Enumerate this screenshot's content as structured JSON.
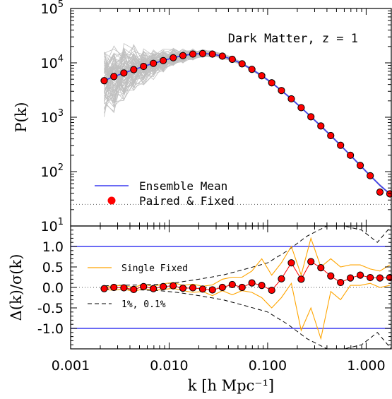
{
  "chart_data": [
    {
      "type": "line",
      "panel": "top",
      "annotation": "Dark Matter, z = 1",
      "ylabel": "P(k)",
      "xscale": "log",
      "yscale": "log",
      "xlim": [
        0.001,
        1.8
      ],
      "ylim": [
        10,
        100000
      ],
      "y_ticks": [
        {
          "value": 10,
          "base": "10",
          "exp": "1"
        },
        {
          "value": 100,
          "base": "10",
          "exp": "2"
        },
        {
          "value": 1000,
          "base": "10",
          "exp": "3"
        },
        {
          "value": 10000,
          "base": "10",
          "exp": "4"
        },
        {
          "value": 100000,
          "base": "10",
          "exp": "5"
        }
      ],
      "legend": {
        "placement": "bottom-left",
        "entries": [
          "Ensemble Mean",
          "Paired & Fixed"
        ]
      },
      "hline_dotted": 25,
      "colors": {
        "mean": "#3a3af0",
        "paired": "#ff0000",
        "ensemble": "#c0c0c0"
      },
      "series": [
        {
          "name": "Ensemble Mean",
          "style": "line",
          "x": [
            0.00219,
            0.00275,
            0.00347,
            0.00437,
            0.0055,
            0.00692,
            0.00871,
            0.011,
            0.0138,
            0.0174,
            0.0219,
            0.0275,
            0.0347,
            0.0437,
            0.055,
            0.0692,
            0.0871,
            0.11,
            0.138,
            0.174,
            0.219,
            0.275,
            0.347,
            0.437,
            0.55,
            0.692,
            0.871,
            1.1,
            1.38,
            1.74
          ],
          "values": [
            4700,
            5600,
            6500,
            7500,
            8600,
            9800,
            11000,
            12400,
            13600,
            14500,
            14800,
            14500,
            13300,
            11600,
            9600,
            7600,
            5800,
            4300,
            3100,
            2180,
            1500,
            1020,
            690,
            460,
            305,
            200,
            130,
            84,
            56,
            39
          ]
        },
        {
          "name": "Paired & Fixed",
          "style": "markers",
          "x": [
            0.00219,
            0.00275,
            0.00347,
            0.00437,
            0.0055,
            0.00692,
            0.00871,
            0.011,
            0.0138,
            0.0174,
            0.0219,
            0.0275,
            0.0347,
            0.0437,
            0.055,
            0.0692,
            0.0871,
            0.11,
            0.138,
            0.174,
            0.219,
            0.275,
            0.347,
            0.437,
            0.55,
            0.692,
            0.871,
            1.1,
            1.38,
            1.74
          ],
          "values": [
            4700,
            5600,
            6500,
            7500,
            8600,
            9800,
            11000,
            12400,
            13600,
            14500,
            14800,
            14500,
            13300,
            11600,
            9600,
            7600,
            5800,
            4300,
            3100,
            2180,
            1500,
            1020,
            690,
            460,
            305,
            200,
            130,
            84,
            42,
            39
          ]
        }
      ]
    },
    {
      "type": "line",
      "panel": "bottom",
      "ylabel": "Δ(k)/σ(k)",
      "xlabel": "k [h Mpc⁻¹]",
      "xscale": "log",
      "xlim": [
        0.001,
        1.8
      ],
      "ylim": [
        -1.5,
        1.5
      ],
      "x_ticks": [
        {
          "value": 0.001,
          "label": "0.001"
        },
        {
          "value": 0.01,
          "label": "0.010"
        },
        {
          "value": 0.1,
          "label": "0.100"
        },
        {
          "value": 1,
          "label": "1.000"
        }
      ],
      "y_ticks": [
        {
          "value": 1.0,
          "label": "1.0"
        },
        {
          "value": 0.5,
          "label": "0.5"
        },
        {
          "value": 0.0,
          "label": "0.0"
        },
        {
          "value": -0.5,
          "label": "-0.5"
        },
        {
          "value": -1.0,
          "label": "-1.0"
        }
      ],
      "hlines_blue": [
        1.0,
        -1.0
      ],
      "hline_dotted": 0.0,
      "legend": {
        "entries": [
          "Single Fixed",
          "1%, 0.1%"
        ]
      },
      "colors": {
        "paired": "#ff0000",
        "single": "#ffa500",
        "band": "#3a3af0"
      },
      "series": [
        {
          "name": "Paired & Fixed",
          "style": "line+markers",
          "x": [
            0.00219,
            0.00275,
            0.00347,
            0.00437,
            0.0055,
            0.00692,
            0.00871,
            0.011,
            0.0138,
            0.0174,
            0.0219,
            0.0275,
            0.0347,
            0.0437,
            0.055,
            0.0692,
            0.0871,
            0.11,
            0.138,
            0.174,
            0.219,
            0.275,
            0.347,
            0.437,
            0.55,
            0.692,
            0.871,
            1.1,
            1.38,
            1.74
          ],
          "values": [
            -0.03,
            0.0,
            -0.01,
            -0.05,
            0.02,
            -0.03,
            0.02,
            0.04,
            -0.02,
            -0.01,
            -0.04,
            -0.06,
            0.0,
            0.07,
            0.0,
            0.11,
            0.05,
            -0.07,
            0.21,
            0.6,
            0.2,
            0.63,
            0.48,
            0.28,
            0.12,
            0.23,
            0.3,
            0.24,
            0.23,
            0.24
          ]
        },
        {
          "name": "Single Fixed",
          "style": "band",
          "x": [
            0.00219,
            0.00275,
            0.00347,
            0.00437,
            0.0055,
            0.00692,
            0.00871,
            0.011,
            0.0138,
            0.0174,
            0.0219,
            0.0275,
            0.0347,
            0.0437,
            0.055,
            0.0692,
            0.0871,
            0.11,
            0.138,
            0.174,
            0.219,
            0.275,
            0.347,
            0.437,
            0.55,
            0.692,
            0.871,
            1.1,
            1.38,
            1.74
          ],
          "upper": [
            0.0,
            0.05,
            0.04,
            0.0,
            0.08,
            0.02,
            0.09,
            0.12,
            0.05,
            0.08,
            0.03,
            0.06,
            0.2,
            0.25,
            0.25,
            0.4,
            0.7,
            0.3,
            0.6,
            1.0,
            0.3,
            1.2,
            0.5,
            0.7,
            0.5,
            0.55,
            0.55,
            0.45,
            0.4,
            0.55
          ],
          "lower": [
            -0.05,
            -0.07,
            -0.04,
            -0.1,
            -0.03,
            -0.07,
            -0.05,
            -0.02,
            -0.08,
            -0.12,
            -0.1,
            -0.2,
            -0.08,
            -0.18,
            -0.08,
            -0.12,
            -0.25,
            -0.5,
            -0.25,
            0.1,
            -1.05,
            -0.5,
            -1.25,
            -0.1,
            -0.3,
            0.05,
            0.05,
            0.1,
            0.0,
            0.05
          ]
        },
        {
          "name": "1%, 0.1%",
          "style": "dashed",
          "x": [
            0.0022,
            0.003,
            0.005,
            0.008,
            0.012,
            0.02,
            0.035,
            0.06,
            0.1,
            0.16,
            0.25,
            0.4,
            0.6,
            0.9,
            1.3,
            1.8
          ],
          "upper": [
            0.04,
            0.05,
            0.06,
            0.08,
            0.12,
            0.2,
            0.3,
            0.45,
            0.6,
            0.9,
            1.25,
            1.5,
            1.5,
            1.4,
            1.1,
            1.5
          ],
          "lower": [
            -0.04,
            -0.05,
            -0.06,
            -0.08,
            -0.12,
            -0.2,
            -0.3,
            -0.45,
            -0.6,
            -0.9,
            -1.25,
            -1.5,
            -1.5,
            -1.4,
            -1.1,
            -1.5
          ]
        }
      ]
    }
  ]
}
